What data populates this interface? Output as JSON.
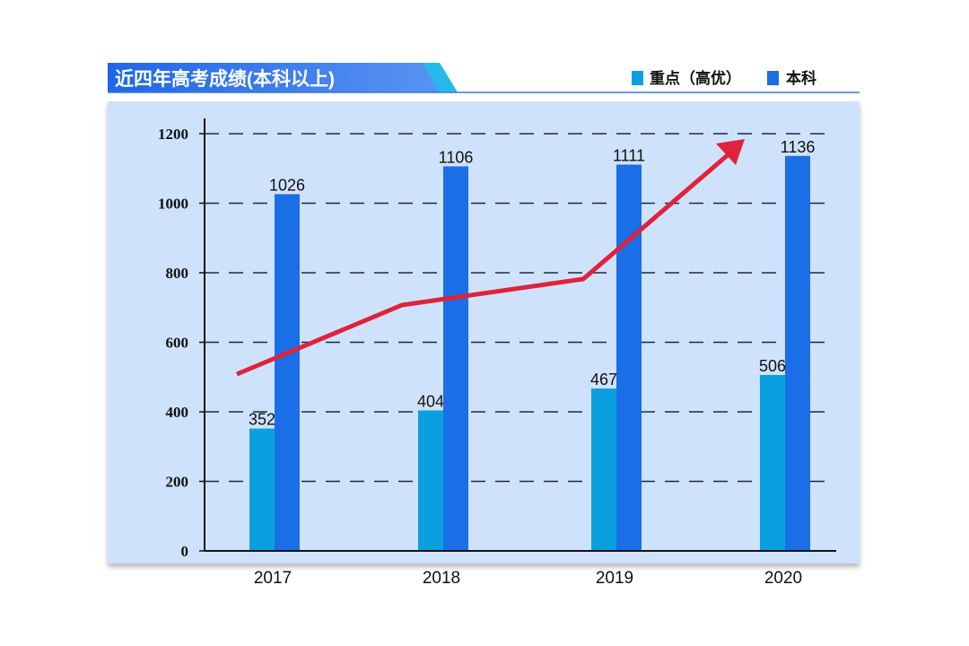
{
  "chart_data": {
    "type": "bar",
    "title": "近四年高考成绩(本科以上)",
    "categories": [
      "2017",
      "2018",
      "2019",
      "2020"
    ],
    "series": [
      {
        "name": "重点（高优）",
        "values": [
          352,
          404,
          467,
          506
        ],
        "color": "#0aa0e0"
      },
      {
        "name": "本科",
        "values": [
          1026,
          1106,
          1111,
          1136
        ],
        "color": "#1a6ee6"
      }
    ],
    "ylim": [
      0,
      1200
    ],
    "yticks": [
      "0",
      "200",
      "400",
      "600",
      "800",
      "1000",
      "1200"
    ],
    "grid": "dashed horizontal",
    "legend": "top-right",
    "background": "#cfe2fb",
    "trend_arrow_color": "#e0223a"
  }
}
